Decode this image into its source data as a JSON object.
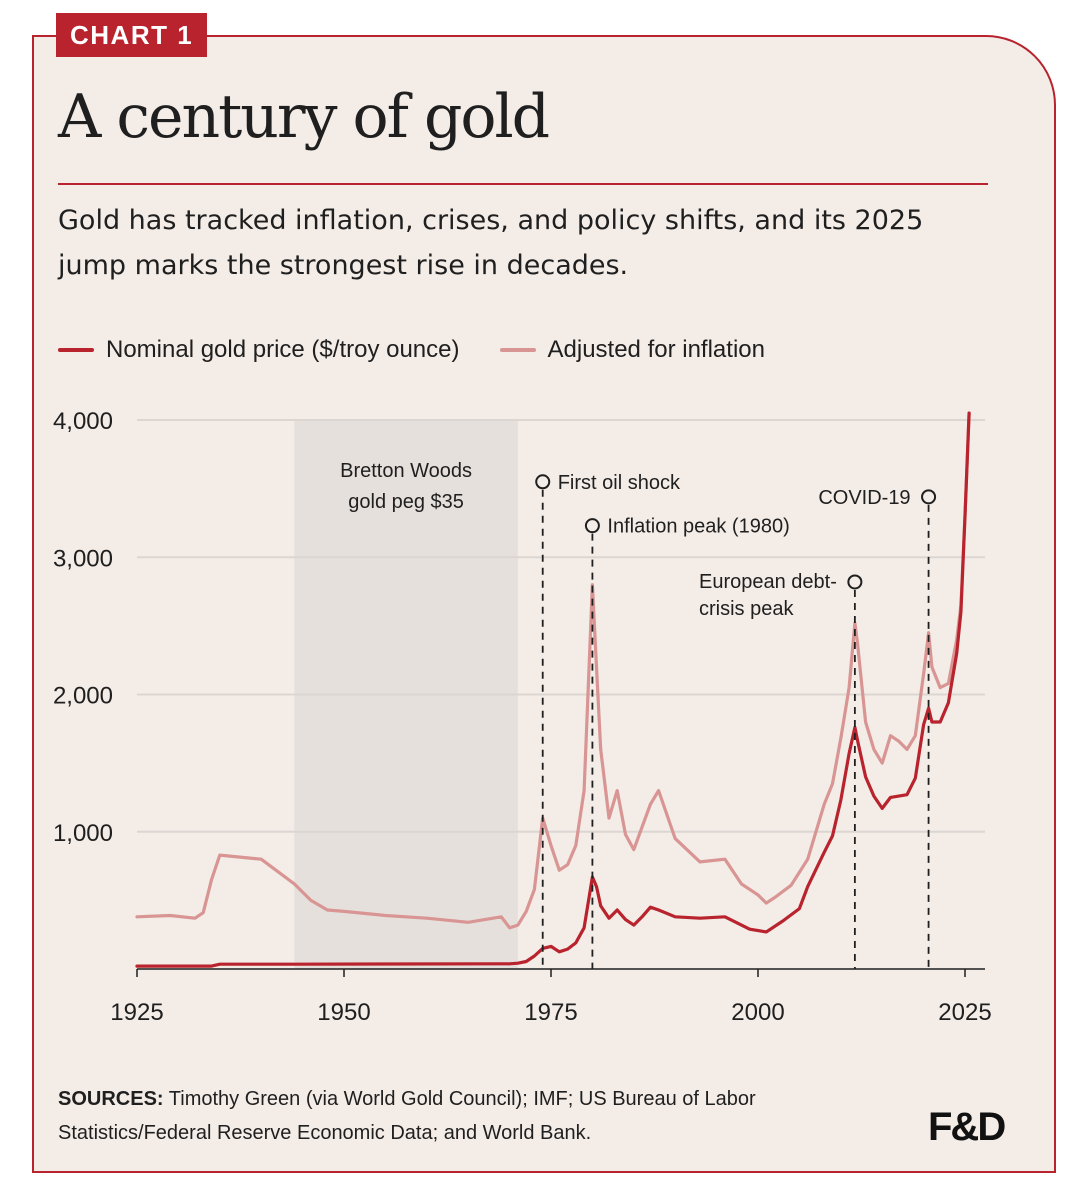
{
  "tag": "CHART 1",
  "title": "A century of gold",
  "subtitle": "Gold has tracked inflation, crises, and policy shifts, and its 2025 jump marks the strongest rise in decades.",
  "legend": {
    "nominal": "Nominal gold price ($/troy ounce)",
    "real": "Adjusted for inflation"
  },
  "colors": {
    "nominal": "#b8232d",
    "real": "#d89593",
    "shade": "#e6e0dd",
    "grid": "#dcd6d2",
    "background": "#f3ece7"
  },
  "sources": {
    "label": "SOURCES:",
    "text": " Timothy Green (via World Gold Council); IMF; US Bureau of Labor Statistics/Federal Reserve Economic Data; and World Bank."
  },
  "logo": "F&D",
  "chart_data": {
    "type": "line",
    "xlim": [
      1925,
      2026
    ],
    "ylim": [
      0,
      4000
    ],
    "x_ticks": [
      "1925",
      "1950",
      "1975",
      "2000",
      "2025"
    ],
    "y_ticks": [
      "1,000",
      "2,000",
      "3,000",
      "4,000"
    ],
    "y_tick_values": [
      1000,
      2000,
      3000,
      4000
    ],
    "x_tick_values": [
      1925,
      1950,
      1975,
      2000,
      2025
    ],
    "grid": "horizontal",
    "legend_position": "top-left",
    "shaded_region": {
      "label_lines": [
        "Bretton Woods",
        "gold peg $35"
      ],
      "from": 1944,
      "to": 1971
    },
    "annotations": [
      {
        "label": "First oil shock",
        "x": 1974,
        "y": 3550
      },
      {
        "label": "Inflation peak (1980)",
        "x": 1980,
        "y": 3230
      },
      {
        "label": "European debt-crisis peak",
        "label_lines": [
          "European debt-",
          "crisis peak"
        ],
        "x": 2011.7,
        "y": 2820
      },
      {
        "label": "COVID-19",
        "x": 2020.6,
        "y": 3440
      }
    ],
    "series": [
      {
        "name": "Nominal gold price ($/troy ounce)",
        "x": [
          1925,
          1934,
          1935,
          1944,
          1968,
          1970,
          1971,
          1972,
          1973,
          1974,
          1975,
          1976,
          1977,
          1978,
          1979,
          1980,
          1980.5,
          1981,
          1982,
          1983,
          1984,
          1985,
          1986,
          1987,
          1988,
          1990,
          1993,
          1996,
          1999,
          2001,
          2003,
          2005,
          2006,
          2008,
          2009,
          2010,
          2011,
          2011.7,
          2012,
          2013,
          2014,
          2015,
          2016,
          2017,
          2018,
          2019,
          2020,
          2020.6,
          2021,
          2022,
          2023,
          2024,
          2024.5,
          2025,
          2025.5
        ],
        "y": [
          21,
          21,
          35,
          35,
          38,
          38,
          42,
          55,
          95,
          150,
          165,
          125,
          145,
          190,
          300,
          670,
          600,
          460,
          370,
          430,
          360,
          320,
          380,
          450,
          430,
          380,
          370,
          380,
          290,
          270,
          350,
          440,
          600,
          850,
          970,
          1230,
          1570,
          1760,
          1670,
          1400,
          1260,
          1170,
          1250,
          1260,
          1270,
          1390,
          1780,
          1900,
          1800,
          1800,
          1940,
          2300,
          2600,
          3300,
          4050
        ]
      },
      {
        "name": "Adjusted for inflation",
        "x": [
          1925,
          1929,
          1932,
          1933,
          1934,
          1935,
          1940,
          1944,
          1946,
          1948,
          1950,
          1955,
          1960,
          1965,
          1969,
          1970,
          1971,
          1972,
          1973,
          1974,
          1975,
          1976,
          1977,
          1978,
          1979,
          1980,
          1980.5,
          1981,
          1982,
          1983,
          1984,
          1985,
          1987,
          1988,
          1990,
          1993,
          1996,
          1998,
          2000,
          2001,
          2002,
          2004,
          2006,
          2008,
          2009,
          2010,
          2011,
          2011.7,
          2012,
          2013,
          2014,
          2015,
          2016,
          2017,
          2018,
          2019,
          2020,
          2020.6,
          2021,
          2022,
          2023,
          2024,
          2024.5,
          2025,
          2025.5
        ],
        "y": [
          380,
          390,
          370,
          410,
          650,
          830,
          800,
          620,
          500,
          430,
          420,
          390,
          370,
          340,
          380,
          300,
          320,
          420,
          580,
          1100,
          900,
          720,
          760,
          900,
          1300,
          2800,
          2200,
          1600,
          1100,
          1300,
          980,
          870,
          1200,
          1300,
          950,
          780,
          800,
          620,
          540,
          480,
          520,
          610,
          800,
          1200,
          1350,
          1680,
          2050,
          2520,
          2380,
          1800,
          1600,
          1500,
          1700,
          1660,
          1600,
          1700,
          2150,
          2450,
          2200,
          2050,
          2080,
          2400,
          2650,
          3300,
          4050
        ]
      }
    ]
  }
}
